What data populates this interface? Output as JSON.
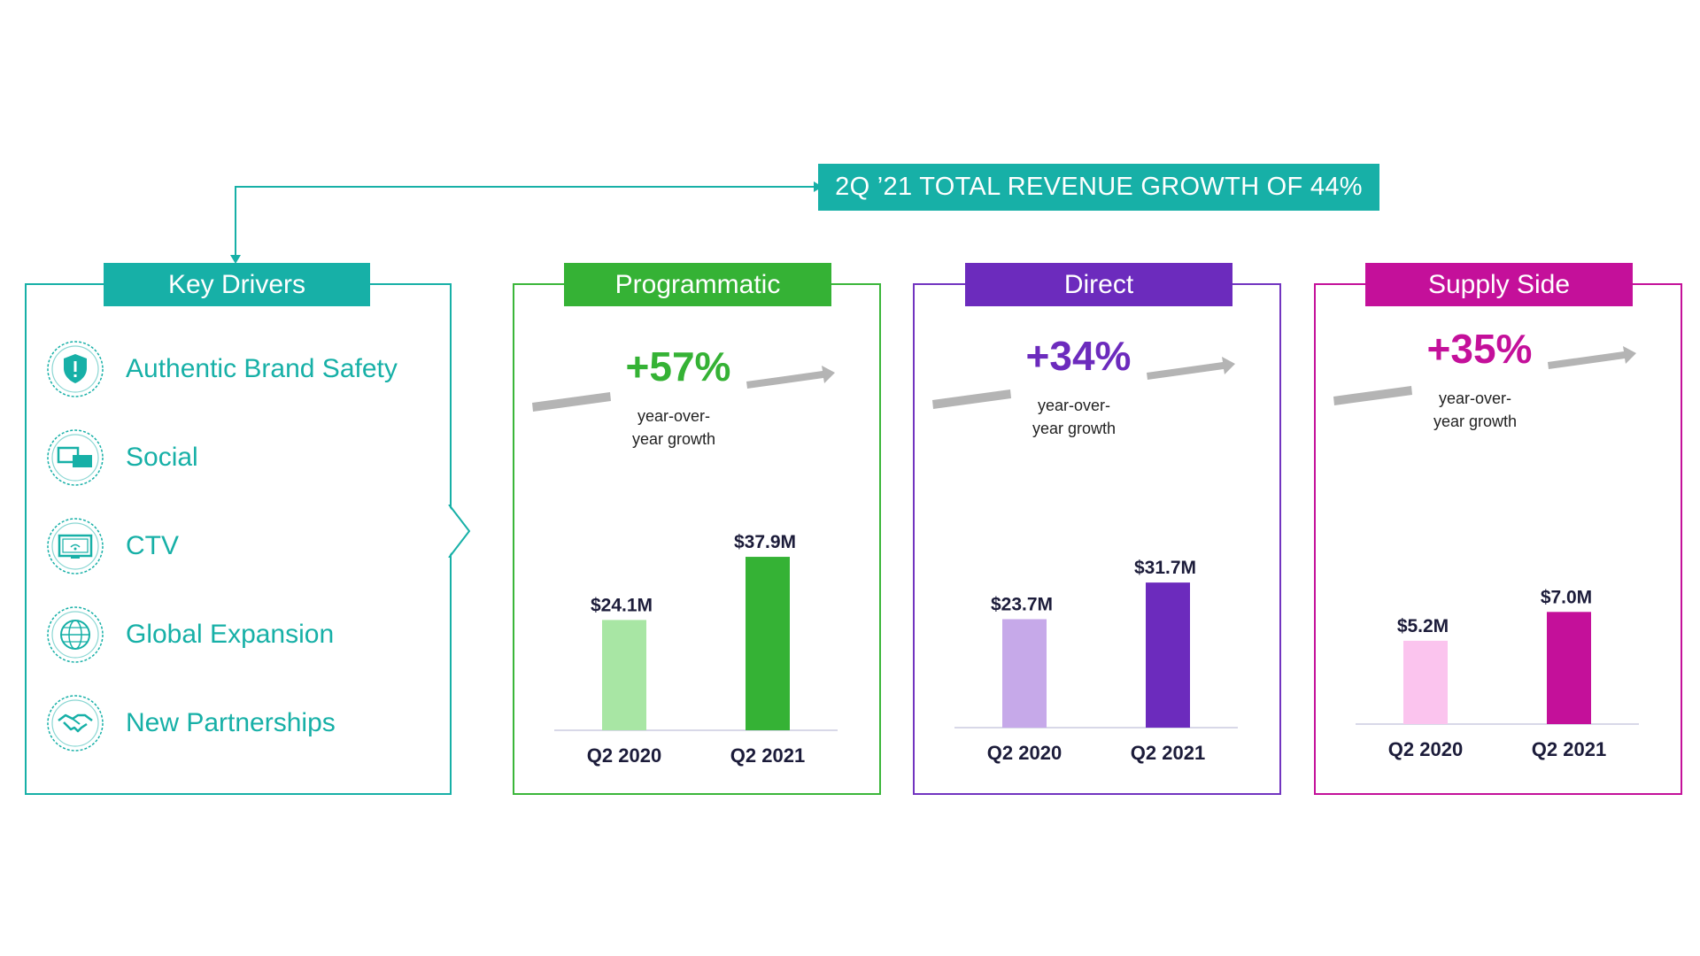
{
  "banner": {
    "text": "2Q ’21 TOTAL REVENUE GROWTH OF 44%"
  },
  "key_drivers": {
    "title": "Key Drivers",
    "items": [
      {
        "label": "Authentic Brand Safety",
        "icon": "shield-icon"
      },
      {
        "label": "Social",
        "icon": "chat-bubbles-icon"
      },
      {
        "label": "CTV",
        "icon": "tv-icon"
      },
      {
        "label": "Global Expansion",
        "icon": "globe-icon"
      },
      {
        "label": "New Partnerships",
        "icon": "handshake-icon"
      }
    ]
  },
  "colors": {
    "teal": "#17b0a7",
    "programmatic_light": "#a8e6a4",
    "programmatic_dark": "#35b235",
    "direct_light": "#c6a9e9",
    "direct_dark": "#6c2bbd",
    "supply_light": "#fbc4ee",
    "supply_dark": "#c4109a",
    "arrow_gray": "#b4b4b4"
  },
  "chart_data": [
    {
      "type": "bar",
      "title": "Programmatic",
      "growth": "+57%",
      "growth_sub": [
        "year-over-",
        "year growth"
      ],
      "categories": [
        "Q2 2020",
        "Q2 2021"
      ],
      "values": [
        24.1,
        37.9
      ],
      "value_labels": [
        "$24.1M",
        "$37.9M"
      ],
      "unit": "$M",
      "ylim": [
        0,
        38
      ],
      "grid": false
    },
    {
      "type": "bar",
      "title": "Direct",
      "growth": "+34%",
      "growth_sub": [
        "year-over-",
        "year growth"
      ],
      "categories": [
        "Q2 2020",
        "Q2 2021"
      ],
      "values": [
        23.7,
        31.7
      ],
      "value_labels": [
        "$23.7M",
        "$31.7M"
      ],
      "unit": "$M",
      "ylim": [
        0,
        38
      ],
      "grid": false
    },
    {
      "type": "bar",
      "title": "Supply Side",
      "growth": "+35%",
      "growth_sub": [
        "year-over-",
        "year growth"
      ],
      "categories": [
        "Q2 2020",
        "Q2 2021"
      ],
      "values": [
        5.2,
        7.0
      ],
      "value_labels": [
        "$5.2M",
        "$7.0M"
      ],
      "unit": "$M",
      "ylim": [
        0,
        10
      ],
      "grid": false
    }
  ]
}
